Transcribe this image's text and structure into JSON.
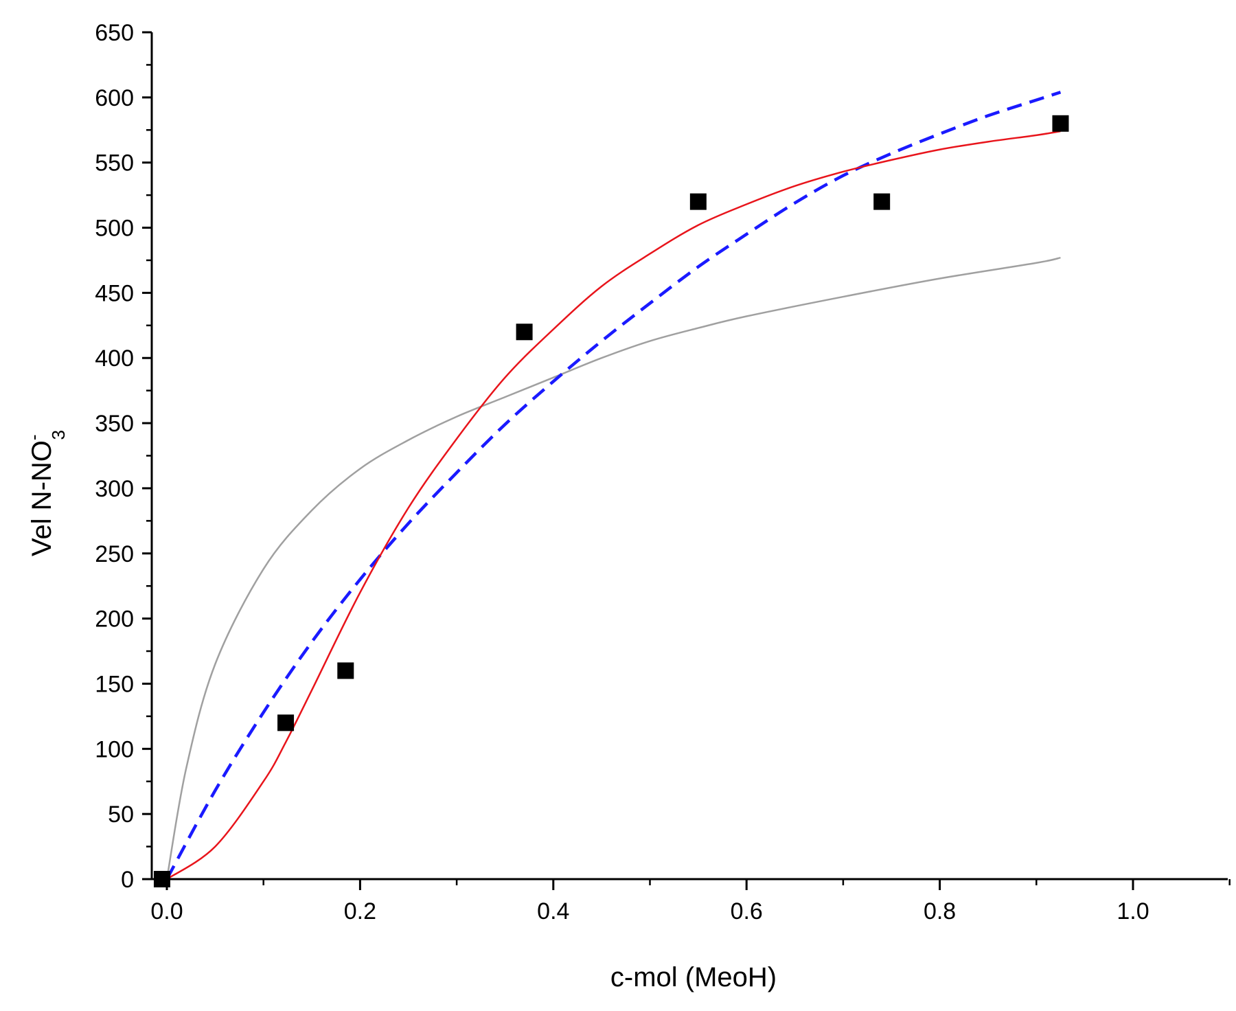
{
  "chart_data": {
    "type": "scatter",
    "title": "",
    "xlabel": "c-mol (MeoH)",
    "ylabel": {
      "main": "Vel N-NO",
      "superscript": "-",
      "subscript": "3"
    },
    "xlim": [
      0.0,
      1.1
    ],
    "ylim": [
      0,
      650
    ],
    "x_ticks": [
      0.0,
      0.2,
      0.4,
      0.6,
      0.8,
      1.0
    ],
    "x_tick_labels": [
      "0.0",
      "0.2",
      "0.4",
      "0.6",
      "0.8",
      "1.0"
    ],
    "y_ticks": [
      0,
      50,
      100,
      150,
      200,
      250,
      300,
      350,
      400,
      450,
      500,
      550,
      600,
      650
    ],
    "y_tick_labels": [
      "0",
      "50",
      "100",
      "150",
      "200",
      "250",
      "300",
      "350",
      "400",
      "450",
      "500",
      "550",
      "600",
      "650"
    ],
    "grid": false,
    "series": [
      {
        "name": "measured",
        "kind": "points",
        "marker": "square",
        "color": "#000000",
        "x": [
          -0.005,
          0.123,
          0.185,
          0.37,
          0.55,
          0.74,
          0.925
        ],
        "y": [
          0,
          120,
          160,
          420,
          520,
          520,
          580
        ]
      },
      {
        "name": "fit-red",
        "kind": "line",
        "style": "solid",
        "color": "#e8141b",
        "x": [
          0.0,
          0.05,
          0.1,
          0.123,
          0.15,
          0.2,
          0.25,
          0.3,
          0.35,
          0.4,
          0.45,
          0.5,
          0.55,
          0.6,
          0.65,
          0.7,
          0.75,
          0.8,
          0.85,
          0.9,
          0.925
        ],
        "y": [
          0,
          25,
          75,
          105,
          145,
          220,
          285,
          338,
          385,
          422,
          455,
          480,
          502,
          518,
          532,
          543,
          552,
          560,
          566,
          571,
          574
        ]
      },
      {
        "name": "fit-blue-dashed",
        "kind": "line",
        "style": "dashed",
        "color": "#1a1aff",
        "x": [
          0.0,
          0.05,
          0.1,
          0.15,
          0.2,
          0.25,
          0.3,
          0.35,
          0.4,
          0.45,
          0.5,
          0.55,
          0.6,
          0.65,
          0.7,
          0.75,
          0.8,
          0.85,
          0.9,
          0.925
        ],
        "y": [
          0,
          68,
          128,
          182,
          230,
          273,
          312,
          349,
          382,
          413,
          442,
          470,
          495,
          519,
          540,
          557,
          572,
          586,
          598,
          604
        ]
      },
      {
        "name": "fit-gray",
        "kind": "line",
        "style": "solid",
        "color": "#a0a0a0",
        "x": [
          0.0,
          0.02,
          0.05,
          0.1,
          0.15,
          0.2,
          0.25,
          0.3,
          0.35,
          0.4,
          0.45,
          0.5,
          0.55,
          0.6,
          0.7,
          0.8,
          0.9,
          0.925
        ],
        "y": [
          0,
          85,
          165,
          238,
          283,
          315,
          337,
          355,
          370,
          385,
          400,
          413,
          423,
          432,
          447,
          461,
          473,
          477
        ]
      }
    ]
  }
}
